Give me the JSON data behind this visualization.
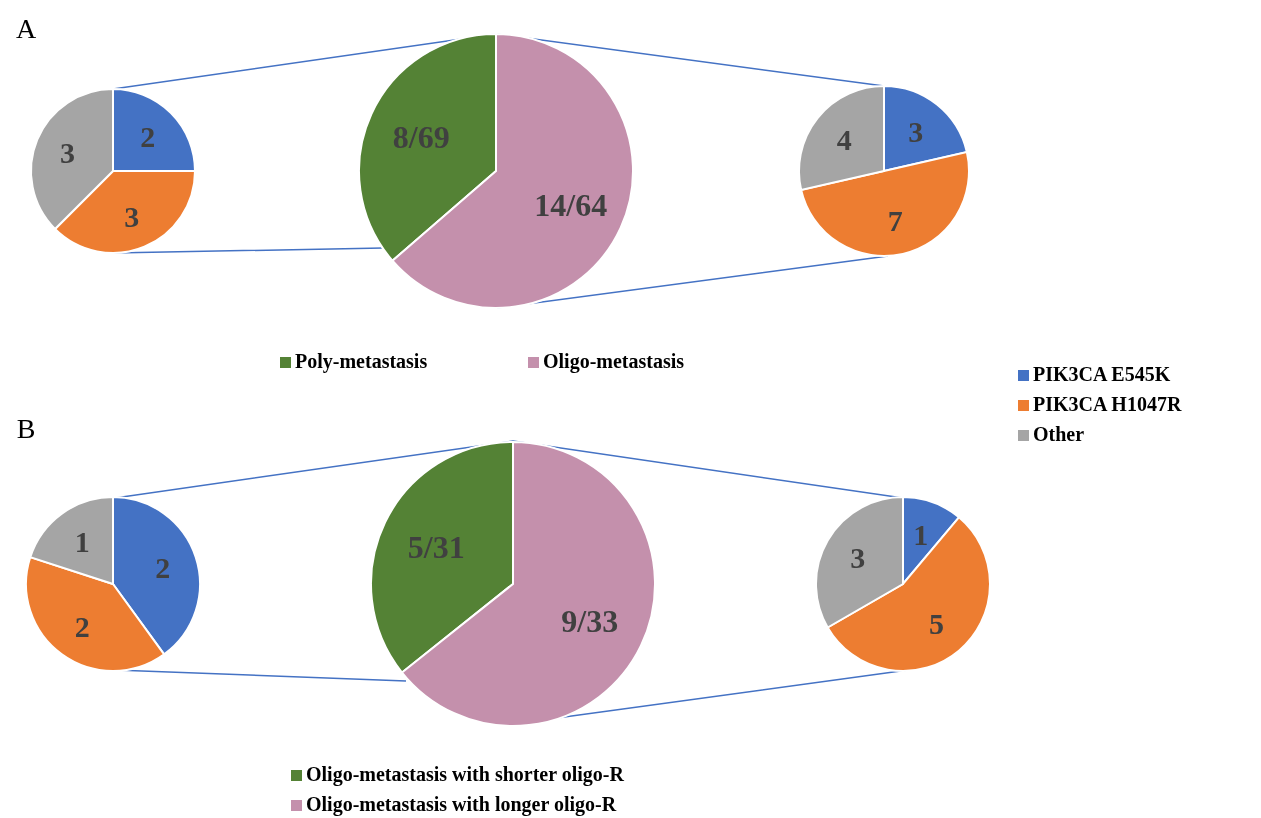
{
  "chart_data": [
    {
      "type": "pie",
      "title": "A",
      "categories": [
        null,
        null,
        null
      ],
      "values": [
        2,
        3,
        3
      ],
      "colors": [
        "#4472c4",
        "#ed7d31",
        "#a5a5a5"
      ],
      "data_labels": true,
      "legend": false
    },
    {
      "type": "pie",
      "categories": [
        "Poly-metastasis",
        "Oligo-metastasis"
      ],
      "values": [
        8,
        14
      ],
      "value_labels": [
        "8/69",
        "14/64"
      ],
      "colors": [
        "#548235",
        "#c490ac"
      ],
      "legend": "bottom"
    },
    {
      "type": "pie",
      "categories": [
        "PIK3CA E545K",
        "PIK3CA H1047R",
        "Other"
      ],
      "values": [
        3,
        7,
        4
      ],
      "colors": [
        "#4472c4",
        "#ed7d31",
        "#a5a5a5"
      ],
      "data_labels": true,
      "legend": "right"
    },
    {
      "type": "pie",
      "title": "B",
      "categories": [
        null,
        null,
        null
      ],
      "values": [
        2,
        2,
        1
      ],
      "colors": [
        "#4472c4",
        "#ed7d31",
        "#a5a5a5"
      ],
      "data_labels": true,
      "legend": false
    },
    {
      "type": "pie",
      "categories": [
        "Oligo-metastasis with shorter oligo-R",
        "Oligo-metastasis with longer oligo-R"
      ],
      "values": [
        5,
        9
      ],
      "value_labels": [
        "5/31",
        "9/33"
      ],
      "colors": [
        "#548235",
        "#c490ac"
      ],
      "legend": "bottom"
    },
    {
      "type": "pie",
      "categories": [
        null,
        null,
        null
      ],
      "values": [
        1,
        5,
        3
      ],
      "colors": [
        "#4472c4",
        "#ed7d31",
        "#a5a5a5"
      ],
      "data_labels": true,
      "legend": false
    }
  ]
}
